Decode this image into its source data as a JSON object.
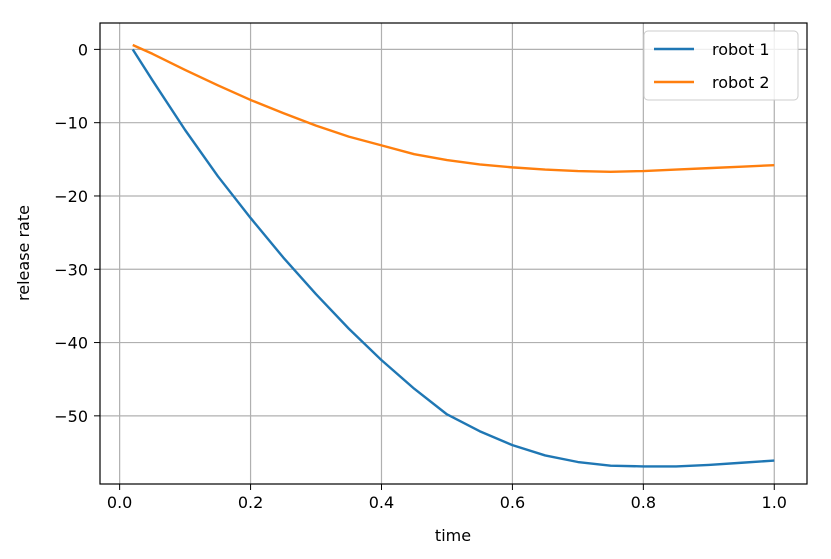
{
  "chart_data": {
    "type": "line",
    "title": "",
    "xlabel": "time",
    "ylabel": "release rate",
    "xlim": [
      -0.03,
      1.05
    ],
    "ylim": [
      -59.3,
      3.6
    ],
    "xticks": [
      0.0,
      0.2,
      0.4,
      0.6,
      0.8,
      1.0
    ],
    "xtick_labels": [
      "0.0",
      "0.2",
      "0.4",
      "0.6",
      "0.8",
      "1.0"
    ],
    "yticks": [
      0,
      -10,
      -20,
      -30,
      -40,
      -50
    ],
    "ytick_labels": [
      "0",
      "−10",
      "−20",
      "−30",
      "−40",
      "−50"
    ],
    "grid": true,
    "legend_position": "top-right",
    "x": [
      0.02,
      0.05,
      0.1,
      0.15,
      0.2,
      0.25,
      0.3,
      0.35,
      0.4,
      0.45,
      0.5,
      0.55,
      0.6,
      0.65,
      0.7,
      0.75,
      0.8,
      0.85,
      0.9,
      0.95,
      1.0
    ],
    "series": [
      {
        "name": "robot 1",
        "color": "#1f77b4",
        "values": [
          0.0,
          -4.2,
          -11.0,
          -17.3,
          -23.0,
          -28.4,
          -33.4,
          -38.1,
          -42.4,
          -46.3,
          -49.8,
          -52.1,
          -54.0,
          -55.4,
          -56.3,
          -56.8,
          -56.9,
          -56.9,
          -56.7,
          -56.4,
          -56.1
        ]
      },
      {
        "name": "robot 2",
        "color": "#ff7f0e",
        "values": [
          0.6,
          -0.6,
          -2.8,
          -4.9,
          -6.9,
          -8.7,
          -10.4,
          -11.9,
          -13.1,
          -14.3,
          -15.1,
          -15.7,
          -16.1,
          -16.4,
          -16.6,
          -16.7,
          -16.6,
          -16.4,
          -16.2,
          -16.0,
          -15.8
        ]
      }
    ]
  }
}
